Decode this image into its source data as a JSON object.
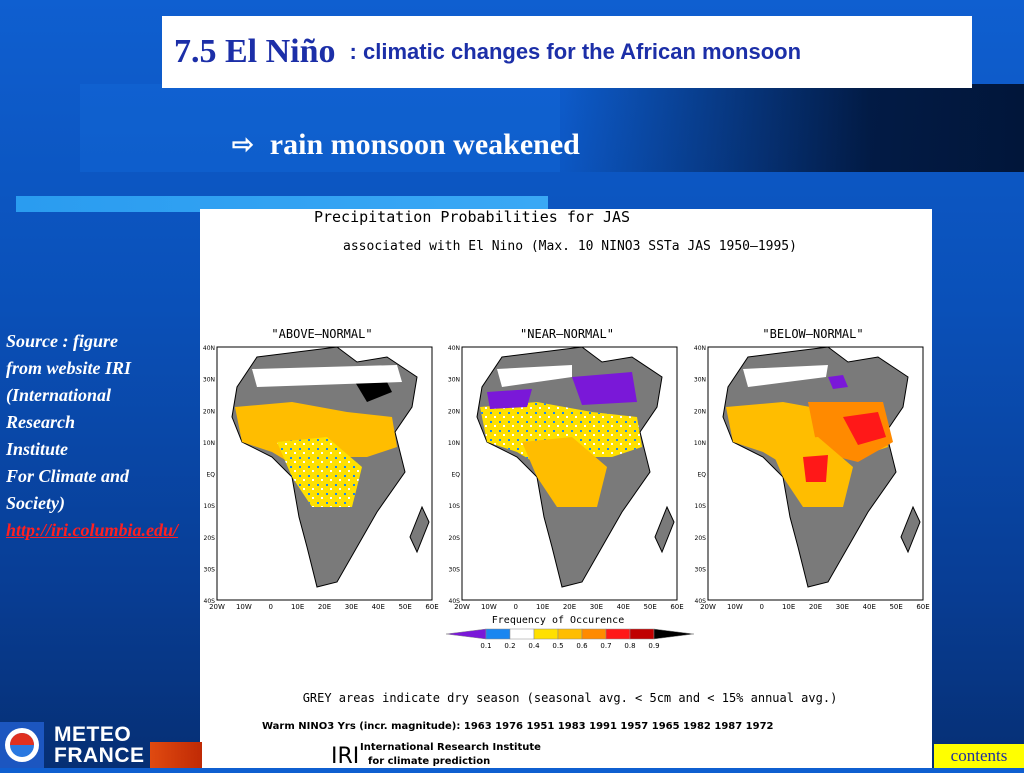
{
  "slide": {
    "title": "7.5 El Niño",
    "subtitle": ": climatic changes for the African monsoon",
    "point": "rain monsoon weakened",
    "point_icon": "right-arrow-icon"
  },
  "source_note": {
    "lines": [
      "Source : figure",
      "from website IRI",
      "(International",
      "Research",
      "Institute",
      "For Climate and",
      "Society)"
    ],
    "link": "http://iri.columbia.edu/"
  },
  "figure": {
    "title": "Precipitation Probabilities for JAS",
    "subtitle": "associated with El Nino (Max. 10 NINO3 SSTa JAS 1950–1995)",
    "panels": [
      {
        "label": "\"ABOVE–NORMAL\""
      },
      {
        "label": "\"NEAR–NORMAL\""
      },
      {
        "label": "\"BELOW–NORMAL\""
      }
    ],
    "lat_ticks": [
      "40N",
      "30N",
      "20N",
      "10N",
      "EQ",
      "10S",
      "20S",
      "30S",
      "40S"
    ],
    "lon_ticks": [
      "20W",
      "10W",
      "0",
      "10E",
      "20E",
      "30E",
      "40E",
      "50E",
      "60E"
    ],
    "colorbar_title": "Frequency of Occurence",
    "colorbar_ticks": [
      "0.1",
      "0.2",
      "0.4",
      "0.5",
      "0.6",
      "0.7",
      "0.8",
      "0.9"
    ],
    "colorbar_colors": [
      "#7a18d8",
      "#1a86f0",
      "#ffffff",
      "#ffe000",
      "#ffbd00",
      "#ff8a00",
      "#ff1818",
      "#c00000",
      "#000000"
    ],
    "note": "GREY areas indicate dry season (seasonal avg. < 5cm and < 15% annual avg.)",
    "years": "Warm NINO3 Yrs (incr. magnitude): 1963 1976 1951 1983 1991 1957 1965 1982 1987 1972",
    "credit_mark": "IRI",
    "credit_line1": "International Research Institute",
    "credit_line2": "for climate prediction"
  },
  "logo": {
    "line1": "METEO",
    "line2": "FRANCE"
  },
  "nav": {
    "contents_label": "contents"
  },
  "colors": {
    "title_text": "#1c2fa8",
    "link": "#ff2020",
    "contents_bg": "#ffff00",
    "accent_bar": "#3aa8f5"
  }
}
